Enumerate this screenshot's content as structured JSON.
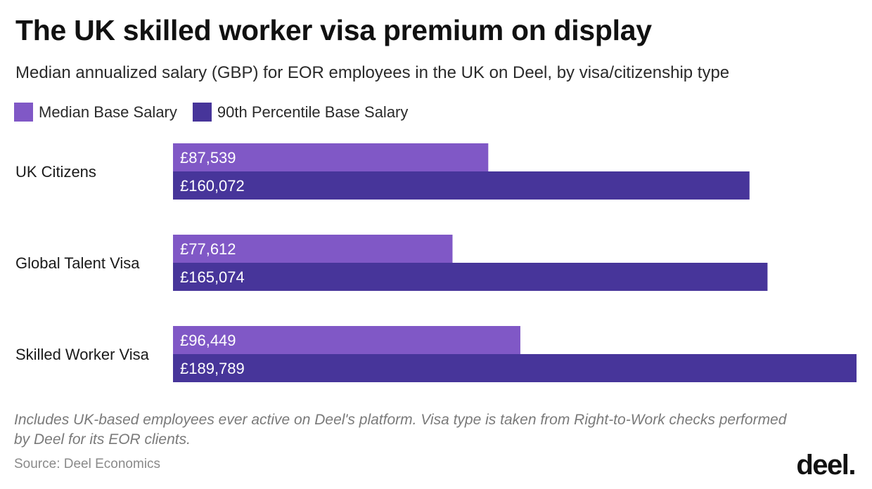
{
  "chart_data": {
    "type": "bar",
    "orientation": "horizontal",
    "title": "The UK skilled worker visa premium on display",
    "subtitle": "Median annualized salary (GBP) for EOR employees in the UK on Deel, by visa/citizenship type",
    "categories": [
      "UK Citizens",
      "Global Talent Visa",
      "Skilled Worker Visa"
    ],
    "series": [
      {
        "name": "Median Base Salary",
        "color": "#8058c6",
        "values": [
          87539,
          77612,
          96449
        ],
        "labels": [
          "£87,539",
          "£77,612",
          "£96,449"
        ]
      },
      {
        "name": "90th Percentile Base Salary",
        "color": "#47359a",
        "values": [
          160072,
          165074,
          189789
        ],
        "labels": [
          "£160,072",
          "£165,074",
          "£189,789"
        ]
      }
    ],
    "xlim": [
      0,
      189789
    ],
    "grid": false,
    "legend_position": "top-left"
  },
  "footer": {
    "note": "Includes UK-based employees ever active on Deel's platform. Visa type is taken from Right-to-Work checks performed by Deel for its EOR clients.",
    "source": "Source: Deel Economics",
    "logo": "deel."
  }
}
